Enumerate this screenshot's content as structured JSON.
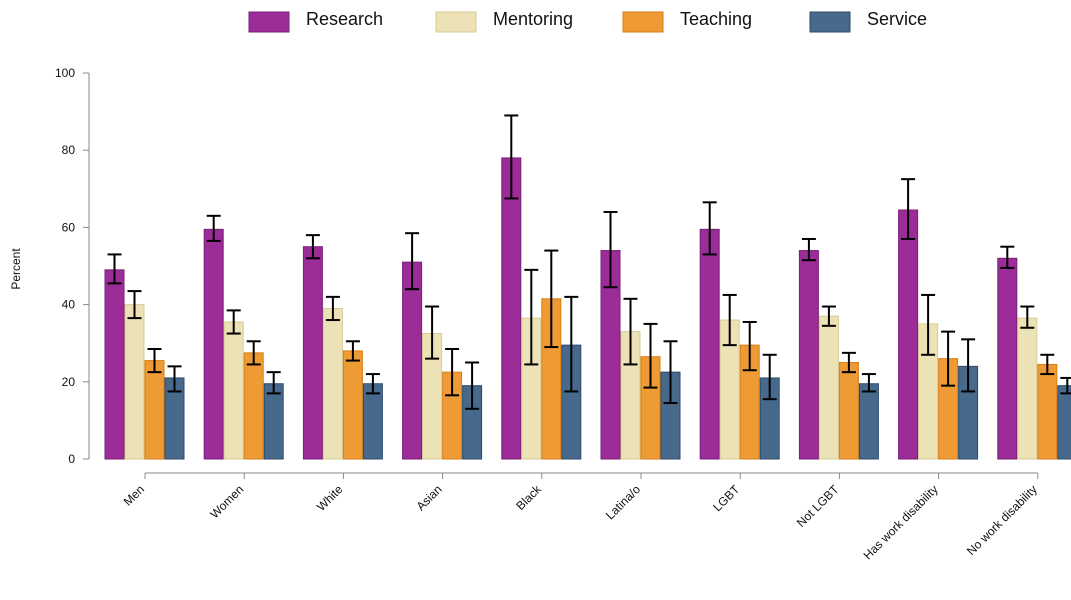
{
  "chart_data": {
    "type": "bar",
    "title": "",
    "xlabel": "",
    "ylabel": "Percent",
    "ylim": [
      0,
      100
    ],
    "yticks": [
      0,
      20,
      40,
      60,
      80,
      100
    ],
    "grid": false,
    "legend_position": "top",
    "categories": [
      "Men",
      "Women",
      "White",
      "Asian",
      "Black",
      "Latina/o",
      "LGBT",
      "Not LGBT",
      "Has work disability",
      "No work disability"
    ],
    "series": [
      {
        "name": "Research",
        "color": "#9b2c98",
        "edge": "#7a1f77",
        "values": [
          49,
          59.5,
          55,
          51,
          78,
          54,
          59.5,
          54,
          64.5,
          52
        ],
        "err_low": [
          45.5,
          56.5,
          52,
          44,
          67.5,
          44.5,
          53,
          51.5,
          57,
          49.5
        ],
        "err_high": [
          53,
          63,
          58,
          58.5,
          89,
          64,
          66.5,
          57,
          72.5,
          55
        ]
      },
      {
        "name": "Mentoring",
        "color": "#ede2b6",
        "edge": "#d8cb95",
        "values": [
          40,
          35.5,
          39,
          32.5,
          36.5,
          33,
          36,
          37,
          35,
          36.5
        ],
        "err_low": [
          36.5,
          32.5,
          36,
          26,
          24.5,
          24.5,
          29.5,
          34.5,
          27,
          34
        ],
        "err_high": [
          43.5,
          38.5,
          42,
          39.5,
          49,
          41.5,
          42.5,
          39.5,
          42.5,
          39.5
        ]
      },
      {
        "name": "Teaching",
        "color": "#ee9a35",
        "edge": "#d97e17",
        "values": [
          25.5,
          27.5,
          28,
          22.5,
          41.5,
          26.5,
          29.5,
          25,
          26,
          24.5
        ],
        "err_low": [
          22.5,
          24.5,
          25.5,
          16.5,
          29,
          18.5,
          23,
          22.5,
          19,
          22
        ],
        "err_high": [
          28.5,
          30.5,
          30.5,
          28.5,
          54,
          35,
          35.5,
          27.5,
          33,
          27
        ]
      },
      {
        "name": "Service",
        "color": "#46698c",
        "edge": "#2c4a6a",
        "values": [
          21,
          19.5,
          19.5,
          19,
          29.5,
          22.5,
          21,
          19.5,
          24,
          19
        ],
        "err_low": [
          17.5,
          17,
          17,
          13,
          17.5,
          14.5,
          15.5,
          17.5,
          17.5,
          17
        ],
        "err_high": [
          24,
          22.5,
          22,
          25,
          42,
          30.5,
          27,
          22,
          31,
          21
        ]
      }
    ]
  }
}
